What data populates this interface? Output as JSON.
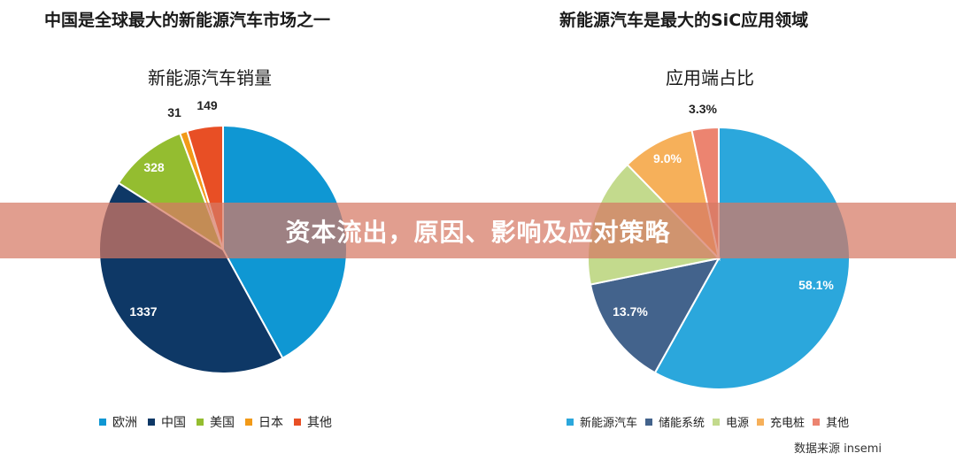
{
  "left_title": "中国是全球最大的新能源汽车市场之一",
  "right_title": "新能源汽车是最大的SiC应用领域",
  "banner_text": "资本流出，原因、影响及应对策略",
  "source": "数据来源 insemi",
  "chart_data": [
    {
      "type": "pie",
      "title": "新能源汽车销量",
      "labels": [
        "欧洲",
        "中国",
        "美国",
        "日本",
        "其他"
      ],
      "values": [
        1337,
        1337,
        328,
        31,
        149
      ],
      "data_labels": [
        "",
        "1337",
        "328",
        "31",
        "149"
      ],
      "colors": [
        "#0f97d3",
        "#0e3866",
        "#94bd30",
        "#f29a18",
        "#e84f25"
      ],
      "legend_position": "bottom"
    },
    {
      "type": "pie",
      "title": "应用端占比",
      "labels": [
        "新能源汽车",
        "储能系统",
        "电源",
        "充电桩",
        "其他"
      ],
      "values": [
        58.1,
        13.7,
        15.9,
        9.0,
        3.3
      ],
      "data_labels": [
        "58.1%",
        "13.7%",
        "",
        "9.0%",
        "3.3%"
      ],
      "colors": [
        "#2ba7dc",
        "#43638c",
        "#c3da8d",
        "#f6b05a",
        "#ec8470"
      ],
      "legend_position": "bottom"
    }
  ]
}
